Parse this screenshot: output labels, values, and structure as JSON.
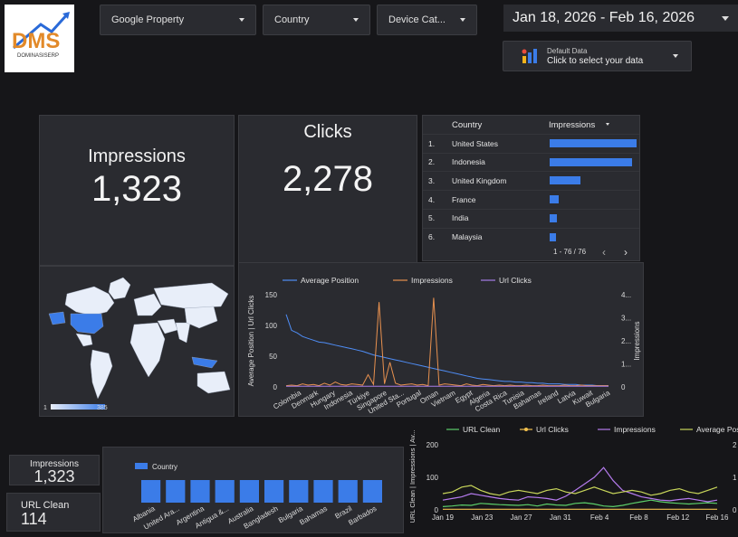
{
  "logo": {
    "text": "DMS",
    "subtext": "DOMINASISERP"
  },
  "filters": [
    {
      "label": "Google Property"
    },
    {
      "label": "Country"
    },
    {
      "label": "Device Cat..."
    }
  ],
  "date_range": {
    "label": "Jan 18, 2026 - Feb 16, 2026"
  },
  "data_source": {
    "title": "Default Data",
    "subtitle": "Click to select your data"
  },
  "scorecards": {
    "impressions": {
      "label": "Impressions",
      "value": "1,323"
    },
    "clicks": {
      "label": "Clicks",
      "value": "2,278"
    },
    "impressions_small": {
      "label": "Impressions",
      "value": "1,323"
    },
    "url_clean": {
      "label": "URL Clean",
      "value": "114"
    }
  },
  "country_table": {
    "col_country": "Country",
    "col_impressions": "Impressions",
    "sort_icon": "sort-desc-icon",
    "rows": [
      {
        "idx": "1.",
        "country": "United States",
        "bar": 1.0
      },
      {
        "idx": "2.",
        "country": "Indonesia",
        "bar": 0.95
      },
      {
        "idx": "3.",
        "country": "United Kingdom",
        "bar": 0.35
      },
      {
        "idx": "4.",
        "country": "France",
        "bar": 0.1
      },
      {
        "idx": "5.",
        "country": "India",
        "bar": 0.08
      },
      {
        "idx": "6.",
        "country": "Malaysia",
        "bar": 0.07
      }
    ],
    "pagination": "1 - 76 / 76",
    "bar_color": "#3b7ce8"
  },
  "geo_map": {
    "legend_min": "1",
    "legend_max": "385",
    "highlight_color": "#3b7ce8"
  },
  "chart_data": [
    {
      "type": "line",
      "legend": [
        "Average Position",
        "Impressions",
        "Url Clicks"
      ],
      "colors": [
        "#4f8df5",
        "#e8914f",
        "#a77de8"
      ],
      "y_left_ticks": [
        "0",
        "50",
        "100",
        "150"
      ],
      "y_right_ticks": [
        "0",
        "1...",
        "2...",
        "3...",
        "4..."
      ],
      "y_left_label": "Average Position | Url Clicks",
      "y_right_label": "Impressions",
      "x_ticks": [
        "Colombia",
        "Denmark",
        "Hungary",
        "Indonesia",
        "Türkiye",
        "Singapore",
        "United Sta...",
        "Portugal",
        "Oman",
        "Vietnam",
        "Egypt",
        "Algeria",
        "Costa Rica",
        "Tunisia",
        "Bahamas",
        "Ireland",
        "Latvia",
        "Kuwait",
        "Bulgaria"
      ],
      "ylim_left": [
        0,
        150
      ],
      "series": [
        {
          "name": "Average Position",
          "values": [
            118,
            92,
            88,
            82,
            79,
            76,
            73,
            72,
            70,
            68,
            66,
            64,
            62,
            60,
            58,
            55,
            52,
            50,
            48,
            46,
            44,
            42,
            40,
            38,
            36,
            34,
            32,
            30,
            28,
            26,
            24,
            22,
            20,
            18,
            16,
            14,
            13,
            12,
            11,
            10,
            9,
            9,
            8,
            8,
            7,
            7,
            6,
            6,
            5,
            5,
            5,
            4,
            4,
            4,
            3,
            3,
            3,
            2,
            2,
            2
          ]
        },
        {
          "name": "Impressions",
          "values": [
            2,
            3,
            2,
            5,
            3,
            4,
            2,
            6,
            3,
            8,
            4,
            3,
            5,
            4,
            3,
            20,
            4,
            138,
            5,
            40,
            6,
            3,
            4,
            5,
            3,
            4,
            2,
            145,
            3,
            5,
            4,
            3,
            2,
            5,
            3,
            2,
            4,
            3,
            2,
            3,
            2,
            3,
            2,
            2,
            3,
            2,
            2,
            3,
            2,
            2,
            2,
            3,
            2,
            2,
            3,
            2,
            2,
            2,
            2,
            2
          ]
        },
        {
          "name": "Url Clicks",
          "values": [
            1,
            1,
            1,
            1,
            1,
            1,
            1,
            1,
            1,
            1,
            1,
            1,
            1,
            1,
            1,
            1,
            1,
            1,
            1,
            1,
            1,
            1,
            1,
            1,
            1,
            1,
            1,
            1,
            1,
            1,
            1,
            1,
            1,
            1,
            1,
            1,
            1,
            1,
            1,
            1,
            1,
            1,
            1,
            1,
            1,
            1,
            1,
            1,
            1,
            1,
            1,
            1,
            1,
            1,
            1,
            1,
            1,
            1,
            1,
            1
          ]
        }
      ]
    },
    {
      "type": "bar",
      "legend": "Country",
      "color": "#3b7ce8",
      "categories": [
        "Albania",
        "United Ara...",
        "Argentina",
        "Antigua &...",
        "Australia",
        "Bangladesh",
        "Bulgaria",
        "Bahamas",
        "Brazil",
        "Barbados"
      ],
      "values": [
        1,
        1,
        1,
        1,
        1,
        1,
        1,
        1,
        1,
        1
      ]
    },
    {
      "type": "line",
      "legend": [
        "URL Clean",
        "Url Clicks",
        "Impressions",
        "Average Position"
      ],
      "colors": [
        "#5ccf6a",
        "#f2c14e",
        "#b57bee",
        "#c8d65a"
      ],
      "y_left_ticks": [
        "0",
        "100",
        "200"
      ],
      "y_right_ticks": [
        "0",
        "1",
        "2"
      ],
      "y_left_label": "URL Clean | Impressions | Av...",
      "x_ticks": [
        "Jan 19",
        "Jan 23",
        "Jan 27",
        "Jan 31",
        "Feb 4",
        "Feb 8",
        "Feb 12",
        "Feb 16"
      ],
      "ylim_left": [
        0,
        200
      ],
      "series": [
        {
          "name": "URL Clean",
          "values": [
            10,
            12,
            15,
            14,
            20,
            18,
            16,
            15,
            14,
            16,
            12,
            18,
            15,
            14,
            20,
            22,
            18,
            12,
            10,
            14,
            20,
            25,
            30,
            25,
            22,
            20,
            18,
            20,
            22,
            20
          ]
        },
        {
          "name": "Url Clicks",
          "values": [
            2,
            2,
            2,
            2,
            2,
            2,
            2,
            2,
            2,
            2,
            2,
            2,
            2,
            2,
            2,
            2,
            2,
            2,
            2,
            2,
            2,
            2,
            2,
            2,
            2,
            2,
            2,
            2,
            2,
            2
          ]
        },
        {
          "name": "Impressions",
          "values": [
            30,
            35,
            40,
            50,
            45,
            40,
            35,
            32,
            30,
            40,
            38,
            35,
            30,
            42,
            60,
            80,
            100,
            130,
            90,
            60,
            50,
            40,
            35,
            30,
            28,
            32,
            35,
            30,
            25,
            30
          ]
        },
        {
          "name": "Average Position",
          "values": [
            50,
            55,
            70,
            75,
            60,
            50,
            45,
            55,
            60,
            55,
            50,
            60,
            65,
            55,
            50,
            60,
            70,
            60,
            50,
            55,
            60,
            55,
            45,
            50,
            60,
            65,
            55,
            50,
            60,
            70
          ]
        }
      ]
    }
  ]
}
